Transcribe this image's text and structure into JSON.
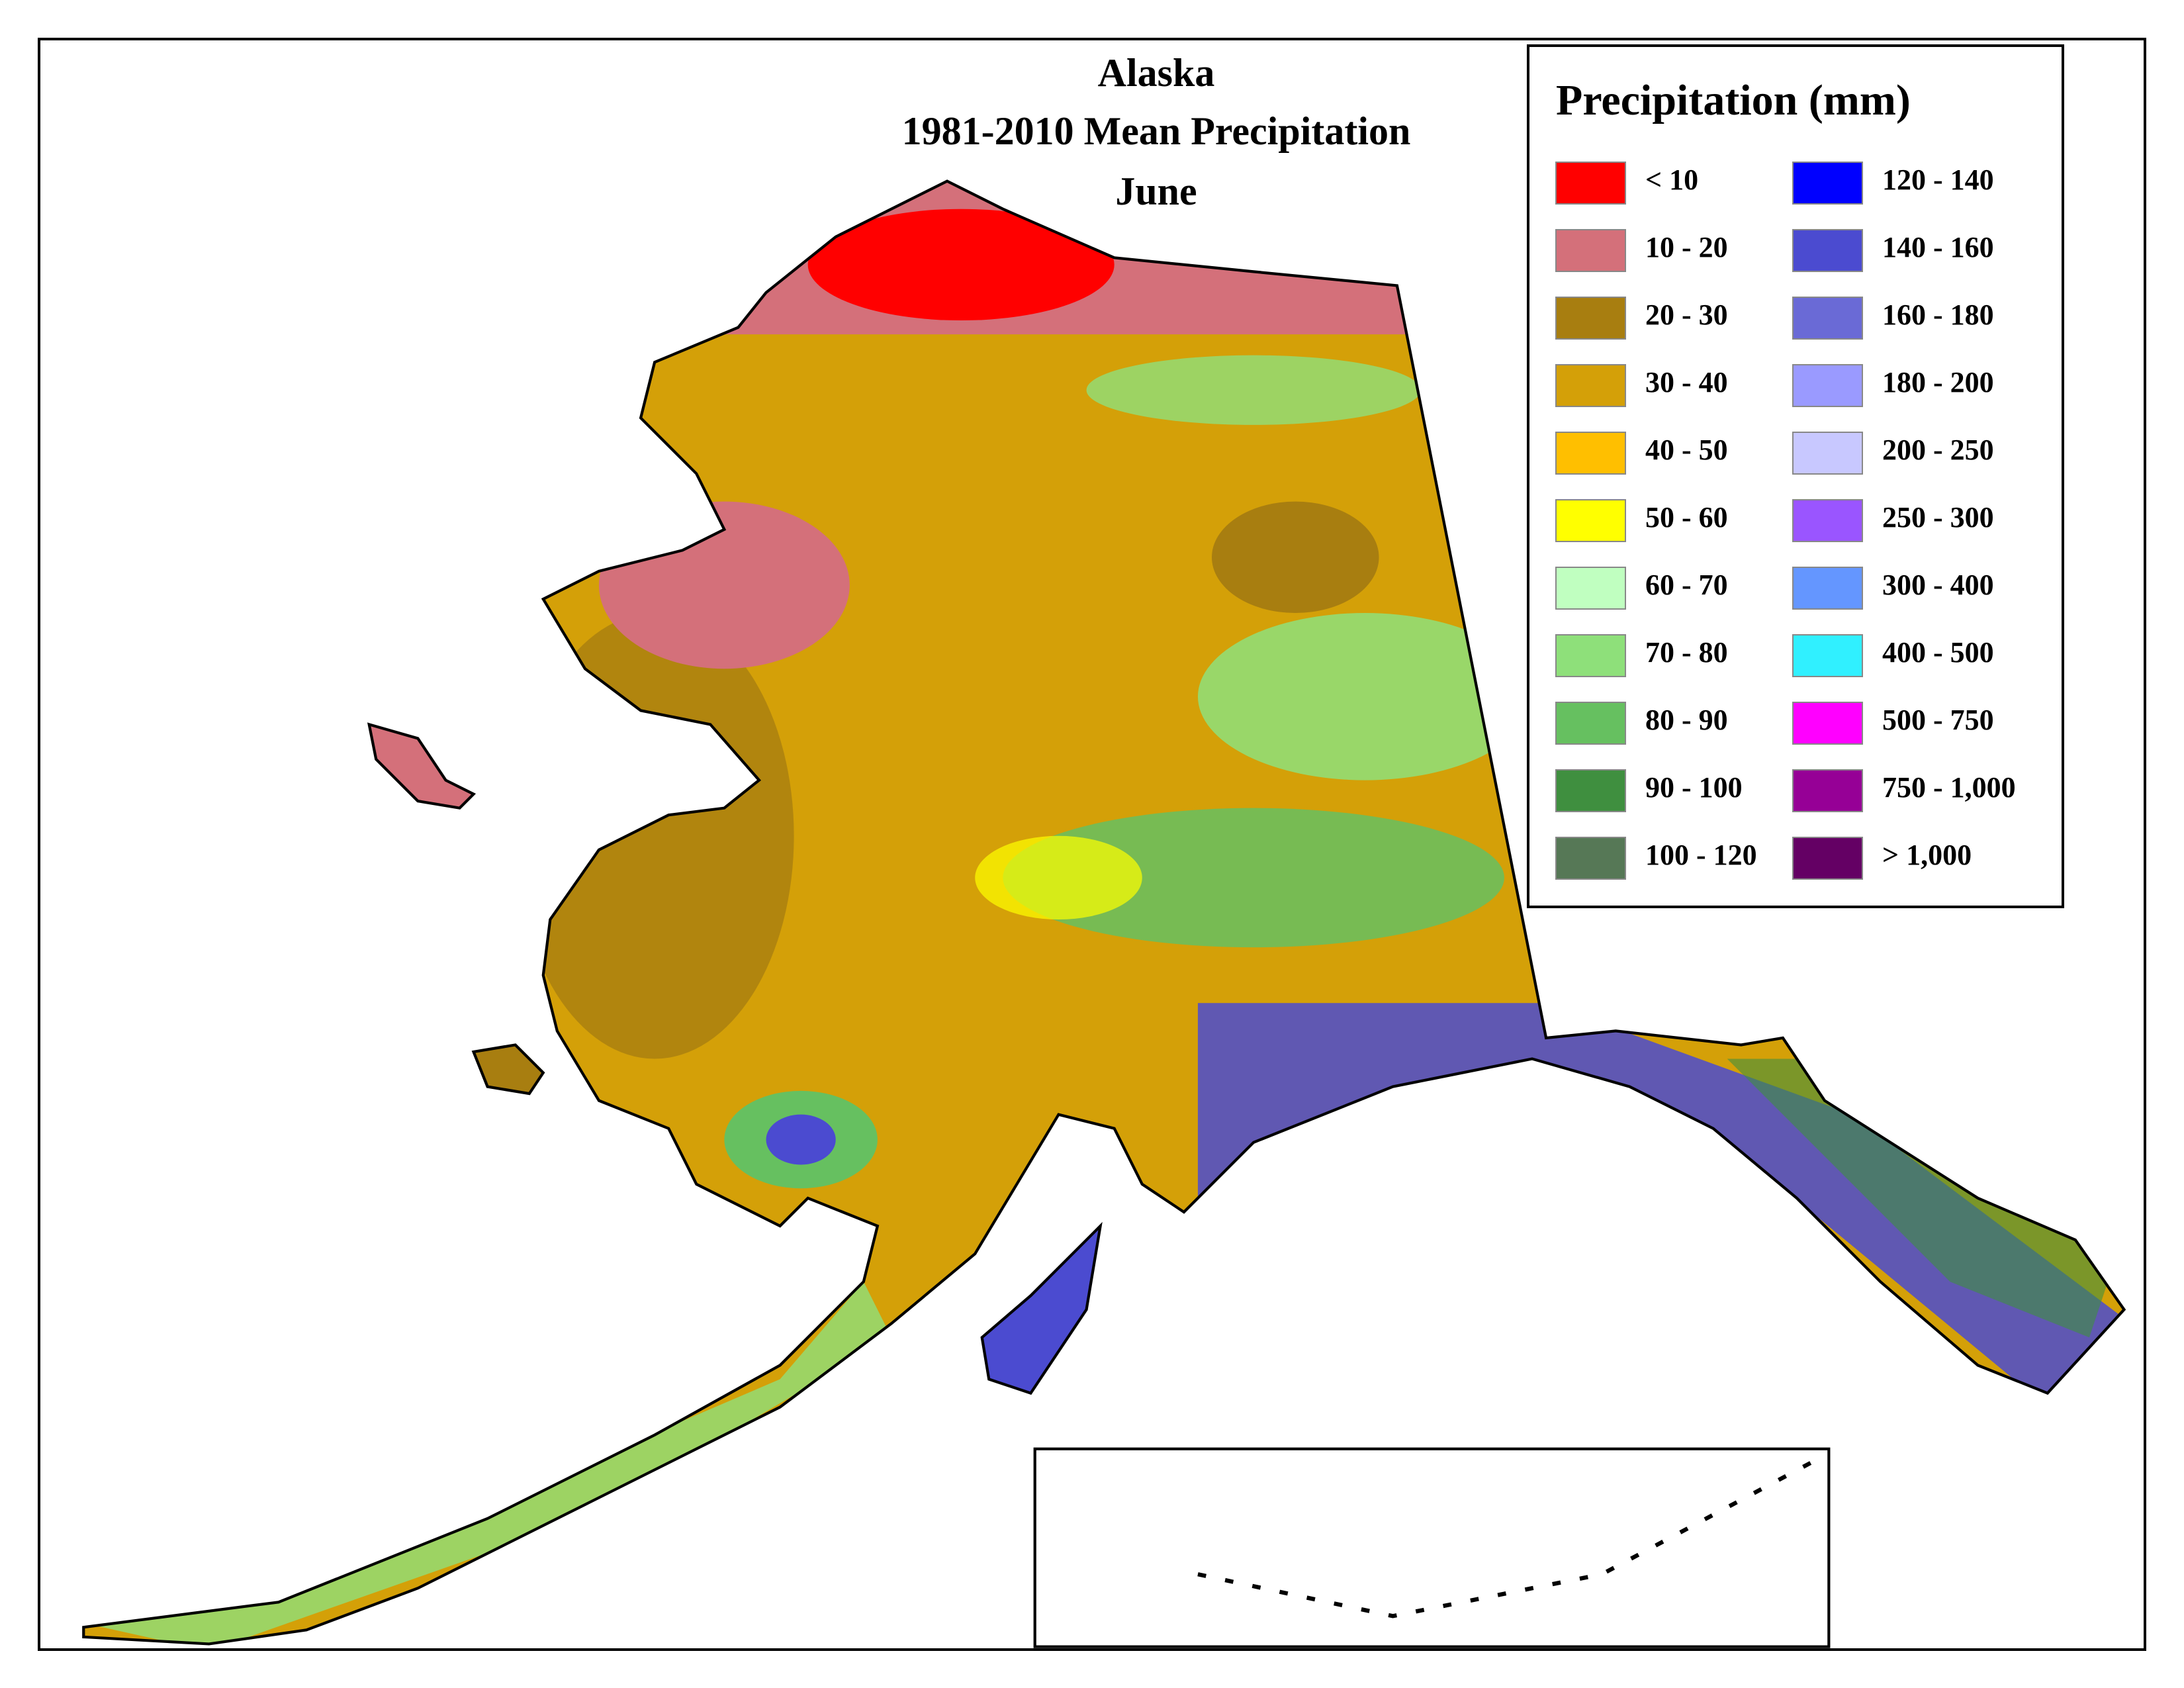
{
  "map": {
    "title": [
      "Alaska",
      "1981-2010 Mean Precipitation",
      "June"
    ],
    "legend": {
      "title": "Precipitation (mm)",
      "items": [
        {
          "label": "< 10",
          "color": "#ff0000"
        },
        {
          "label": "10 - 20",
          "color": "#d4707a"
        },
        {
          "label": "20 - 30",
          "color": "#a87e10"
        },
        {
          "label": "30 - 40",
          "color": "#d4a008"
        },
        {
          "label": "40 - 50",
          "color": "#ffbf00"
        },
        {
          "label": "50 - 60",
          "color": "#ffff00"
        },
        {
          "label": "60 - 70",
          "color": "#c0ffc0"
        },
        {
          "label": "70 - 80",
          "color": "#8ee07a"
        },
        {
          "label": "80 - 90",
          "color": "#66c060"
        },
        {
          "label": "90 - 100",
          "color": "#3f8f3f"
        },
        {
          "label": "100 - 120",
          "color": "#567856"
        },
        {
          "label": "120 - 140",
          "color": "#0000ff"
        },
        {
          "label": "140 - 160",
          "color": "#4b4bd0"
        },
        {
          "label": "160 - 180",
          "color": "#6a6ad6"
        },
        {
          "label": "180 - 200",
          "color": "#9a9aff"
        },
        {
          "label": "200 - 250",
          "color": "#c8c8ff"
        },
        {
          "label": "250 - 300",
          "color": "#9a55ff"
        },
        {
          "label": "300 - 400",
          "color": "#6496ff"
        },
        {
          "label": "400 - 500",
          "color": "#30f0ff"
        },
        {
          "label": "500 - 750",
          "color": "#ff00ff"
        },
        {
          "label": "750 - 1,000",
          "color": "#960096"
        },
        {
          "label": "> 1,000",
          "color": "#640064"
        }
      ]
    }
  }
}
